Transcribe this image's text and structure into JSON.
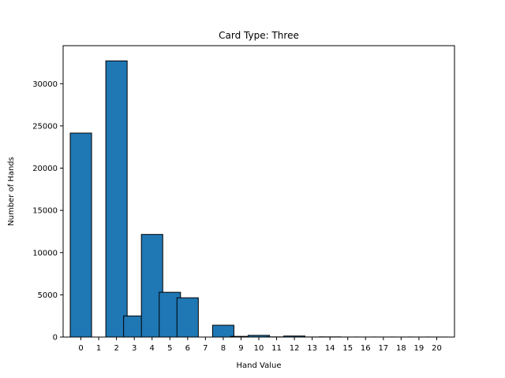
{
  "chart_data": {
    "type": "bar",
    "title": "Card Type: Three",
    "xlabel": "Hand Value",
    "ylabel": "Number of Hands",
    "categories": [
      "0",
      "1",
      "2",
      "3",
      "4",
      "5",
      "6",
      "7",
      "8",
      "9",
      "10",
      "11",
      "12",
      "13",
      "14",
      "15",
      "16",
      "17",
      "18",
      "19",
      "20"
    ],
    "values": [
      24150,
      0,
      32700,
      2500,
      12150,
      5300,
      4650,
      0,
      1400,
      80,
      200,
      20,
      120,
      10,
      20,
      5,
      5,
      5,
      5,
      5,
      5
    ],
    "y_ticks": [
      0,
      5000,
      10000,
      15000,
      20000,
      25000,
      30000
    ],
    "ylim": [
      0,
      34500
    ],
    "xlim": [
      -1,
      21
    ],
    "grid": false,
    "colors": {
      "bar_fill": "#1f77b4",
      "bar_edge": "#000000"
    }
  }
}
